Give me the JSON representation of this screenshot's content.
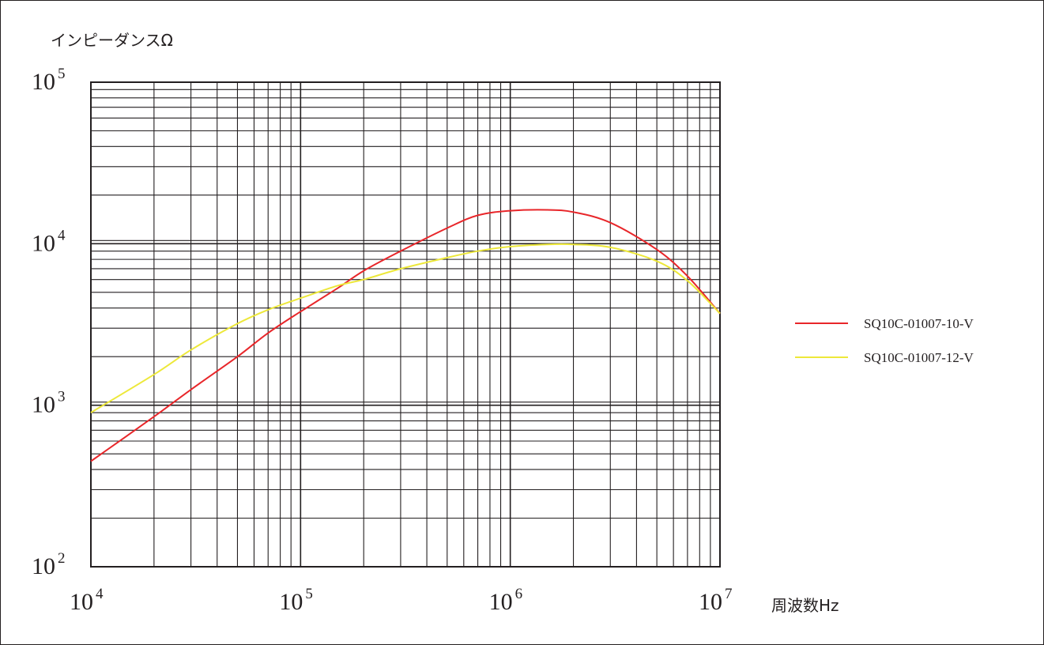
{
  "chart_data": {
    "type": "line",
    "ylabel": "インピーダンスΩ",
    "xlabel": "周波数Hz",
    "x_scale": "log",
    "y_scale": "log",
    "xlim": [
      10000,
      10000000
    ],
    "ylim": [
      100,
      100000
    ],
    "grid": true,
    "legend_position": "right",
    "x_ticks": [
      {
        "base": "10",
        "exp": "4",
        "value": 10000
      },
      {
        "base": "10",
        "exp": "5",
        "value": 100000
      },
      {
        "base": "10",
        "exp": "6",
        "value": 1000000
      },
      {
        "base": "10",
        "exp": "7",
        "value": 10000000
      }
    ],
    "y_ticks": [
      {
        "base": "10",
        "exp": "2",
        "value": 100
      },
      {
        "base": "10",
        "exp": "3",
        "value": 1000
      },
      {
        "base": "10",
        "exp": "4",
        "value": 10000
      },
      {
        "base": "10",
        "exp": "5",
        "value": 100000
      }
    ],
    "series": [
      {
        "name": "SQ10C-01007-10-V",
        "color": "#e8262a",
        "x": [
          10000,
          20000,
          30000,
          50000,
          70000,
          100000,
          150000,
          200000,
          300000,
          500000,
          700000,
          1000000,
          1500000,
          2000000,
          3000000,
          5000000,
          7000000,
          10000000
        ],
        "y": [
          450,
          850,
          1250,
          2000,
          2800,
          3800,
          5300,
          6800,
          9000,
          12500,
          15000,
          16000,
          16200,
          15700,
          13500,
          9200,
          6300,
          3700
        ]
      },
      {
        "name": "SQ10C-01007-12-V",
        "color": "#ede83a",
        "x": [
          10000,
          20000,
          30000,
          50000,
          70000,
          100000,
          150000,
          200000,
          300000,
          500000,
          700000,
          1000000,
          1500000,
          2000000,
          3000000,
          5000000,
          7000000,
          10000000
        ],
        "y": [
          900,
          1550,
          2200,
          3200,
          3900,
          4600,
          5500,
          6000,
          7000,
          8200,
          9000,
          9600,
          9900,
          9900,
          9500,
          7800,
          5900,
          3700
        ]
      }
    ]
  }
}
